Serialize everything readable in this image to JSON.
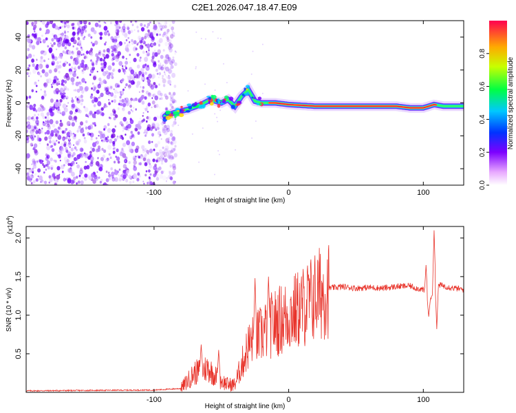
{
  "title": "C2E1.2026.047.18.47.E09",
  "chart_data": [
    {
      "type": "heatmap",
      "xlabel": "Height of straight line (km)",
      "ylabel": "Frequency (Hz)",
      "xlim": [
        -195,
        130
      ],
      "ylim": [
        -50,
        50
      ],
      "xticks": [
        -100,
        0,
        100
      ],
      "yticks": [
        -40,
        -20,
        0,
        20,
        40
      ],
      "noise_region_km": [
        -195,
        -90
      ],
      "signal_track": {
        "x": [
          -92,
          -85,
          -75,
          -65,
          -58,
          -50,
          -45,
          -40,
          -35,
          -30,
          -25,
          -20,
          -10,
          0,
          20,
          40,
          60,
          80,
          90,
          100,
          108,
          115,
          130
        ],
        "freq_hz": [
          -8,
          -6,
          -4,
          -1,
          2,
          0,
          2,
          -2,
          4,
          8,
          1,
          0,
          0,
          -1,
          -2,
          -2,
          -2,
          -2,
          -3,
          -3,
          -1,
          -2,
          -2
        ]
      },
      "colorbar": {
        "label": "Normalized spectral amplitude",
        "range": [
          0,
          1
        ],
        "ticks": [
          0.0,
          0.2,
          0.4,
          0.6,
          0.8
        ]
      }
    },
    {
      "type": "line",
      "xlabel": "Height of straight line (km)",
      "ylabel": "SNR (10 * v/v)",
      "multiplier": "(x10",
      "multiplier_exp": "4",
      "xlim": [
        -195,
        130
      ],
      "ylim": [
        0,
        2.15
      ],
      "xticks": [
        -100,
        0,
        100
      ],
      "yticks": [
        0.5,
        1.0,
        1.5,
        2.0
      ],
      "color": "#e8332a",
      "envelope": {
        "x": [
          -195,
          -100,
          -80,
          -75,
          -70,
          -65,
          -60,
          -55,
          -50,
          -45,
          -40,
          -35,
          -30,
          -25,
          -20,
          -15,
          -10,
          -5,
          0,
          10,
          20,
          30,
          40,
          50,
          60,
          70,
          80,
          90,
          95,
          100,
          102,
          105,
          108,
          110,
          115,
          120,
          130
        ],
        "y": [
          0.02,
          0.03,
          0.05,
          0.15,
          0.25,
          0.28,
          0.32,
          0.22,
          0.15,
          0.1,
          0.1,
          0.35,
          0.6,
          0.7,
          0.75,
          0.85,
          0.9,
          0.95,
          1.0,
          1.1,
          1.25,
          1.35,
          1.37,
          1.35,
          1.36,
          1.35,
          1.37,
          1.38,
          1.35,
          1.33,
          1.25,
          1.2,
          1.35,
          1.4,
          1.38,
          1.36,
          1.33
        ]
      },
      "spikes": [
        {
          "x": -65,
          "y": 0.62
        },
        {
          "x": -52,
          "y": 0.55
        },
        {
          "x": -25,
          "y": 1.48
        },
        {
          "x": -15,
          "y": 1.5
        },
        {
          "x": 102,
          "y": 1.65
        },
        {
          "x": 104,
          "y": 0.98
        },
        {
          "x": 108,
          "y": 2.1
        },
        {
          "x": 110,
          "y": 0.82
        }
      ]
    }
  ]
}
